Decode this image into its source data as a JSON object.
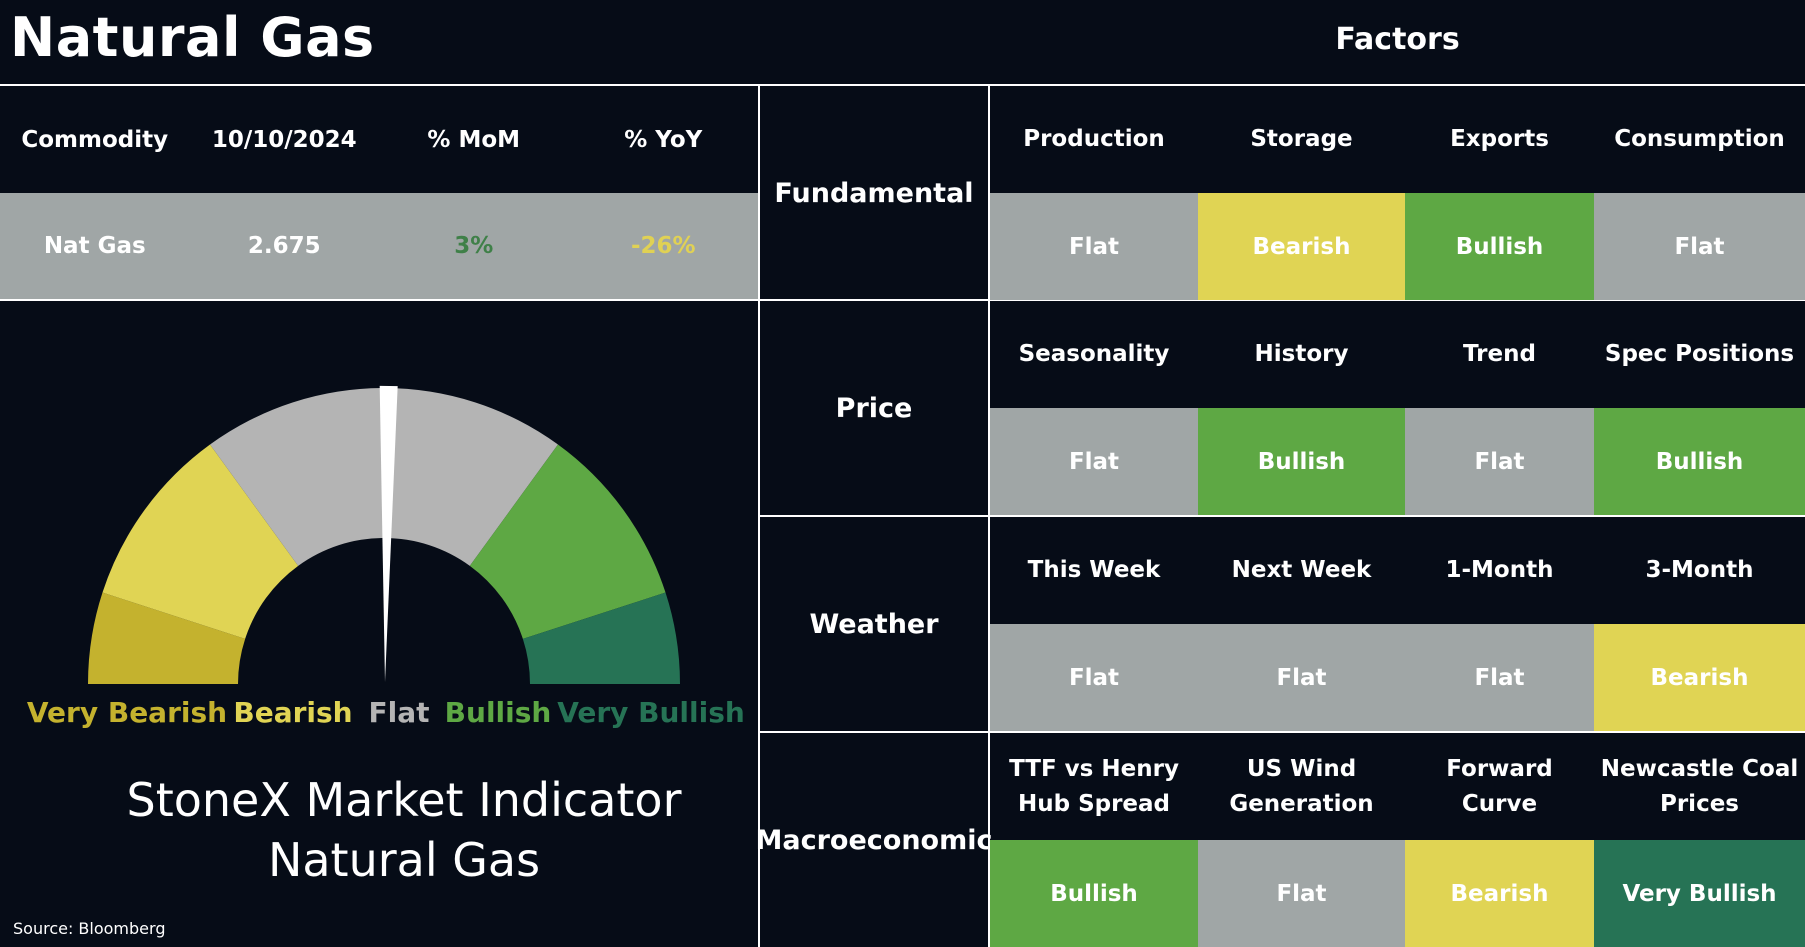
{
  "page_title": "Natural Gas",
  "factors_title": "Factors",
  "colors": {
    "background": "#060c17",
    "very_bearish": "#c4b22e",
    "bearish": "#e0d454",
    "flat": "#a0a6a6",
    "bullish": "#5ea844",
    "very_bullish": "#267355",
    "gauge_flat": "#b4b4b4"
  },
  "commodity_table": {
    "headers": [
      "Commodity",
      "10/10/2024",
      "% MoM",
      "% YoY"
    ],
    "row": {
      "commodity": "Nat Gas",
      "price": "2.675",
      "mom": "3%",
      "yoy": "-26%"
    }
  },
  "gauge": {
    "labels": [
      "Very Bearish",
      "Bearish",
      "Flat",
      "Bullish",
      "Very Bullish"
    ],
    "needle_level": 0.505
  },
  "indicator_title_line1": "StoneX Market Indicator",
  "indicator_title_line2": "Natural Gas",
  "source": "Source: Bloomberg",
  "factors": [
    {
      "category": "Fundamental",
      "items": [
        {
          "label": "Production",
          "value": "Flat",
          "sentiment": "flat"
        },
        {
          "label": "Storage",
          "value": "Bearish",
          "sentiment": "bearish"
        },
        {
          "label": "Exports",
          "value": "Bullish",
          "sentiment": "bullish"
        },
        {
          "label": "Consumption",
          "value": "Flat",
          "sentiment": "flat"
        }
      ]
    },
    {
      "category": "Price",
      "items": [
        {
          "label": "Seasonality",
          "value": "Flat",
          "sentiment": "flat"
        },
        {
          "label": "History",
          "value": "Bullish",
          "sentiment": "bullish"
        },
        {
          "label": "Trend",
          "value": "Flat",
          "sentiment": "flat"
        },
        {
          "label": "Spec Positions",
          "value": "Bullish",
          "sentiment": "bullish"
        }
      ]
    },
    {
      "category": "Weather",
      "items": [
        {
          "label": "This Week",
          "value": "Flat",
          "sentiment": "flat"
        },
        {
          "label": "Next Week",
          "value": "Flat",
          "sentiment": "flat"
        },
        {
          "label": "1-Month",
          "value": "Flat",
          "sentiment": "flat"
        },
        {
          "label": "3-Month",
          "value": "Bearish",
          "sentiment": "bearish"
        }
      ]
    },
    {
      "category": "Macroeconomic",
      "items": [
        {
          "label": "TTF vs Henry Hub Spread",
          "value": "Bullish",
          "sentiment": "bullish"
        },
        {
          "label": "US Wind Generation",
          "value": "Flat",
          "sentiment": "flat"
        },
        {
          "label": "Forward Curve",
          "value": "Bearish",
          "sentiment": "bearish"
        },
        {
          "label": "Newcastle Coal Prices",
          "value": "Very Bullish",
          "sentiment": "very_bullish"
        }
      ]
    }
  ]
}
